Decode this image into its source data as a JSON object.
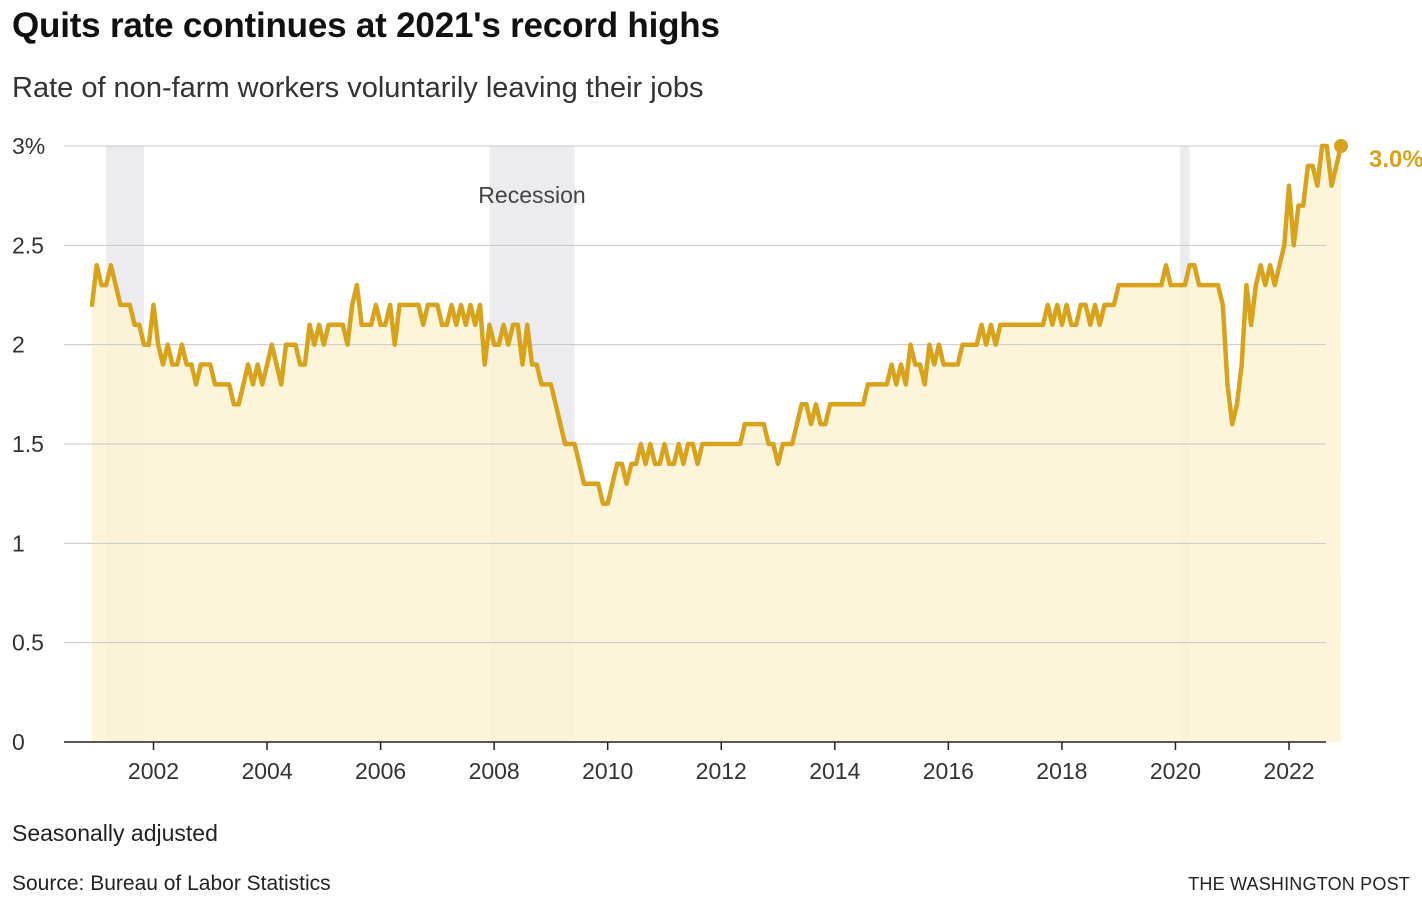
{
  "chart_data": {
    "type": "area",
    "title": "Quits rate continues at 2021's record highs",
    "subtitle": "Rate of non-farm workers voluntarily leaving their jobs",
    "ylabel": "",
    "xlabel": "",
    "x_range": [
      "2000-12",
      "2022-03"
    ],
    "ylim": [
      0,
      3
    ],
    "y_ticks": [
      0,
      0.5,
      1,
      1.5,
      2,
      2.5,
      3
    ],
    "y_tick_labels": [
      "0",
      "0.5",
      "1",
      "1.5",
      "2",
      "2.5",
      "3%"
    ],
    "x_ticks": [
      "2002",
      "2004",
      "2006",
      "2008",
      "2010",
      "2012",
      "2014",
      "2016",
      "2018",
      "2020",
      "2022"
    ],
    "grid": true,
    "line_color": "#d9a21b",
    "fill_color": "#fbf3d2",
    "recession_color": "#ececf0",
    "recessions": [
      {
        "start": "2001-03",
        "end": "2001-11"
      },
      {
        "start": "2007-12",
        "end": "2009-06"
      },
      {
        "start": "2020-02",
        "end": "2020-04"
      }
    ],
    "annotations": [
      {
        "text": "Recession"
      }
    ],
    "end_label": "3.0%",
    "series": [
      {
        "start": "2000-12",
        "values": [
          2.2,
          2.4,
          2.3,
          2.3,
          2.4,
          2.3,
          2.2,
          2.2,
          2.2,
          2.1,
          2.1,
          2.0,
          2.0,
          2.2,
          2.0,
          1.9,
          2.0,
          1.9,
          1.9,
          2.0,
          1.9,
          1.9,
          1.8,
          1.9,
          1.9,
          1.9,
          1.8,
          1.8,
          1.8,
          1.8,
          1.7,
          1.7,
          1.8,
          1.9,
          1.8,
          1.9,
          1.8,
          1.9,
          2.0,
          1.9,
          1.8,
          2.0,
          2.0,
          2.0,
          1.9,
          1.9,
          2.1,
          2.0,
          2.1,
          2.0,
          2.1,
          2.1,
          2.1,
          2.1,
          2.0,
          2.2,
          2.3,
          2.1,
          2.1,
          2.1,
          2.2,
          2.1,
          2.1,
          2.2,
          2.0,
          2.2,
          2.2,
          2.2,
          2.2,
          2.2,
          2.1,
          2.2,
          2.2,
          2.2,
          2.1,
          2.1,
          2.2,
          2.1,
          2.2,
          2.1,
          2.2,
          2.1,
          2.2,
          1.9,
          2.1,
          2.0,
          2.0,
          2.1,
          2.0,
          2.1,
          2.1,
          1.9,
          2.1,
          1.9,
          1.9,
          1.8,
          1.8,
          1.8,
          1.7,
          1.6,
          1.5,
          1.5,
          1.5,
          1.4,
          1.3,
          1.3,
          1.3,
          1.3,
          1.2,
          1.2,
          1.3,
          1.4,
          1.4,
          1.3,
          1.4,
          1.4,
          1.5,
          1.4,
          1.5,
          1.4,
          1.4,
          1.5,
          1.4,
          1.4,
          1.5,
          1.4,
          1.5,
          1.5,
          1.4,
          1.5,
          1.5,
          1.5,
          1.5,
          1.5,
          1.5,
          1.5,
          1.5,
          1.5,
          1.6,
          1.6,
          1.6,
          1.6,
          1.6,
          1.5,
          1.5,
          1.4,
          1.5,
          1.5,
          1.5,
          1.6,
          1.7,
          1.7,
          1.6,
          1.7,
          1.6,
          1.6,
          1.7,
          1.7,
          1.7,
          1.7,
          1.7,
          1.7,
          1.7,
          1.7,
          1.8,
          1.8,
          1.8,
          1.8,
          1.8,
          1.9,
          1.8,
          1.9,
          1.8,
          2.0,
          1.9,
          1.9,
          1.8,
          2.0,
          1.9,
          2.0,
          1.9,
          1.9,
          1.9,
          1.9,
          2.0,
          2.0,
          2.0,
          2.0,
          2.1,
          2.0,
          2.1,
          2.0,
          2.1,
          2.1,
          2.1,
          2.1,
          2.1,
          2.1,
          2.1,
          2.1,
          2.1,
          2.1,
          2.2,
          2.1,
          2.2,
          2.1,
          2.2,
          2.1,
          2.1,
          2.2,
          2.2,
          2.1,
          2.2,
          2.1,
          2.2,
          2.2,
          2.2,
          2.3,
          2.3,
          2.3,
          2.3,
          2.3,
          2.3,
          2.3,
          2.3,
          2.3,
          2.3,
          2.4,
          2.3,
          2.3,
          2.3,
          2.3,
          2.4,
          2.4,
          2.3,
          2.3,
          2.3,
          2.3,
          2.3,
          2.2,
          1.8,
          1.6,
          1.7,
          1.9,
          2.3,
          2.1,
          2.3,
          2.4,
          2.3,
          2.4,
          2.3,
          2.4,
          2.5,
          2.8,
          2.5,
          2.7,
          2.7,
          2.9,
          2.9,
          2.8,
          3.0,
          3.0,
          2.8,
          2.9,
          3.0
        ]
      }
    ]
  },
  "footer": {
    "note": "Seasonally adjusted",
    "source": "Source: Bureau of Labor Statistics",
    "credit": "THE WASHINGTON POST"
  }
}
